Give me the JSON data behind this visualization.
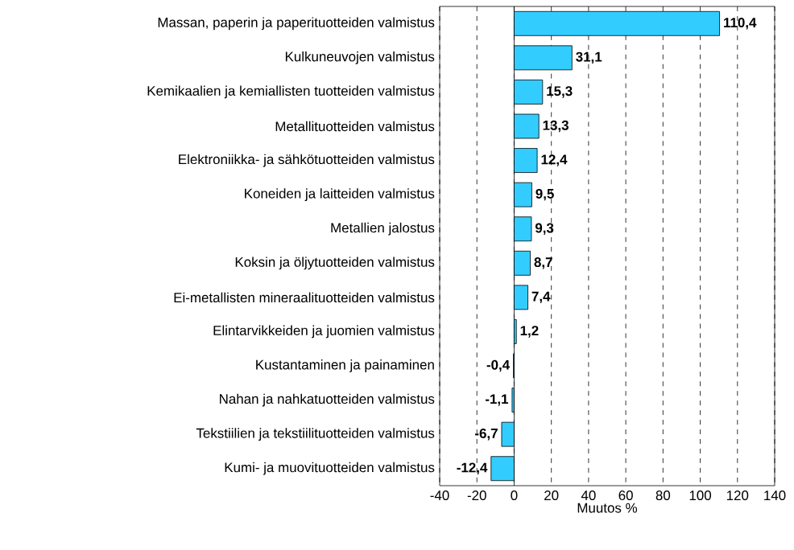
{
  "chart_data": {
    "type": "bar",
    "orientation": "horizontal",
    "xlabel": "Muutos %",
    "categories": [
      "Massan, paperin ja paperituotteiden valmistus",
      "Kulkuneuvojen valmistus",
      "Kemikaalien ja kemiallisten tuotteiden valmistus",
      "Metallituotteiden valmistus",
      "Elektroniikka- ja sähkötuotteiden valmistus",
      "Koneiden ja laitteiden valmistus",
      "Metallien jalostus",
      "Koksin ja öljytuotteiden valmistus",
      "Ei-metallisten mineraalituotteiden valmistus",
      "Elintarvikkeiden ja juomien valmistus",
      "Kustantaminen ja painaminen",
      "Nahan ja nahkatuotteiden valmistus",
      "Tekstiilien ja tekstiilituotteiden valmistus",
      "Kumi- ja muovituotteiden valmistus"
    ],
    "values": [
      110.4,
      31.1,
      15.3,
      13.3,
      12.4,
      9.5,
      9.3,
      8.7,
      7.4,
      1.2,
      -0.4,
      -1.1,
      -6.7,
      -12.4
    ],
    "value_labels": [
      "110,4",
      "31,1",
      "15,3",
      "13,3",
      "12,4",
      "9,5",
      "9,3",
      "8,7",
      "7,4",
      "1,2",
      "-0,4",
      "-1,1",
      "-6,7",
      "-12,4"
    ],
    "color": "#33ccff",
    "xlim": [
      -40,
      140
    ],
    "xticks": [
      -40,
      -20,
      0,
      20,
      40,
      60,
      80,
      100,
      120,
      140
    ],
    "grid": "x",
    "ref_lines": [
      {
        "axis": "x",
        "value": 0
      }
    ]
  }
}
